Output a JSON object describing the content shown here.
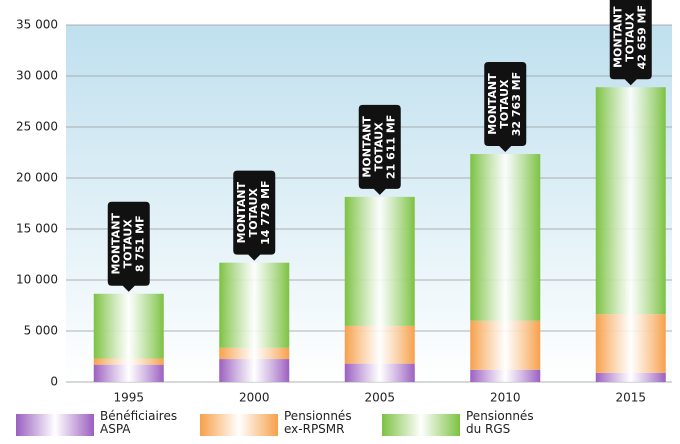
{
  "chart_data": {
    "type": "stacked-bar",
    "categories": [
      "1995",
      "2000",
      "2005",
      "2010",
      "2015"
    ],
    "series": [
      {
        "name": "Bénéficiaires ASPA",
        "color": "#9b5fc0",
        "values": [
          1700,
          2250,
          1800,
          1200,
          900
        ]
      },
      {
        "name": "Pensionnés ex-RPSMR",
        "color": "#f7a04a",
        "values": [
          600,
          1100,
          3700,
          4800,
          5750
        ]
      },
      {
        "name": "Pensionnés du RGS",
        "color": "#7cc242",
        "values": [
          6350,
          8350,
          12650,
          16350,
          22250
        ]
      }
    ],
    "annotations": [
      [
        "MONTANT",
        "TOTAUX",
        "8 751 MF"
      ],
      [
        "MONTANT",
        "TOTAUX",
        "14 779 MF"
      ],
      [
        "MONTANT",
        "TOTAUX",
        "21 611 MF"
      ],
      [
        "MONTANT",
        "TOTAUX",
        "32 763 MF"
      ],
      [
        "MONTANT",
        "TOTAUX",
        "42 659 MF"
      ]
    ],
    "ylim": [
      0,
      35000
    ],
    "yticks": [
      0,
      {
        "value": 5000,
        "label": "5 000"
      },
      {
        "value": 10000,
        "label": "10 000"
      },
      {
        "value": 15000,
        "label": "15 000"
      },
      {
        "value": 20000,
        "label": "20 000"
      },
      {
        "value": 25000,
        "label": "25 000"
      },
      {
        "value": 30000,
        "label": "30 000"
      },
      {
        "value": 35000,
        "label": "35 000"
      }
    ],
    "grid": true
  }
}
